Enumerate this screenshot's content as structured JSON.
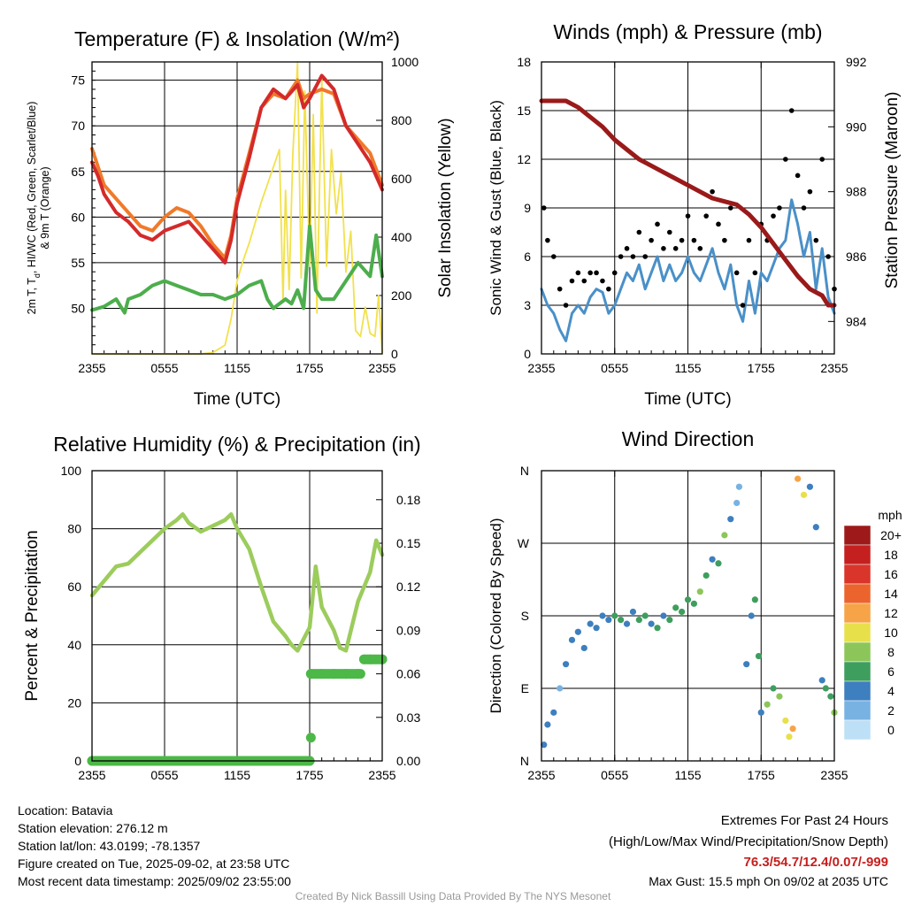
{
  "colors": {
    "temp": "#d42a2a",
    "hiwc": "#d42a2a",
    "t9m": "#f07a2a",
    "dew": "#4cae4c",
    "insol": "#f2e14c",
    "wind": "#4a90c8",
    "gust": "#000000",
    "pressure": "#9a1a1a",
    "rh": "#9ccc5c",
    "precip": "#4cb847",
    "extremes": "#c81e1e",
    "footer": "#999999"
  },
  "chart_data": [
    {
      "type": "line",
      "title": "Temperature (F) & Insolation (W/m²)",
      "xlabel": "Time (UTC)",
      "ylabel": "2m T, Td, HI/WC (Red, Green, Scarlet/Blue) & 9m T (Orange)",
      "ylabel_line1": "2m T, T",
      "ylabel_sub": "d",
      "ylabel_line1_rest": ", HI/WC (Red, Green, Scarlet/Blue)",
      "ylabel_line2": "& 9m T (Orange)",
      "y2label": "Solar Insolation (Yellow)",
      "x_ticks": [
        "2355",
        "0555",
        "1155",
        "1755",
        "2355"
      ],
      "xlim": [
        0,
        24
      ],
      "ylim": [
        45,
        77
      ],
      "y_ticks": [
        50,
        55,
        60,
        65,
        70,
        75
      ],
      "y2lim": [
        0,
        1000
      ],
      "y2_ticks": [
        0,
        200,
        400,
        600,
        800,
        1000
      ],
      "series": [
        {
          "name": "9m T",
          "axis": "y",
          "x": [
            0,
            0.5,
            1,
            2,
            3,
            4,
            5,
            6,
            7,
            8,
            9,
            10,
            11,
            11.5,
            12,
            13,
            14,
            15,
            16,
            17,
            17.5,
            18,
            19,
            20,
            21,
            22,
            23,
            24
          ],
          "values": [
            67.5,
            65.5,
            63.5,
            62,
            60.5,
            59,
            58.5,
            60,
            61,
            60.5,
            59,
            57,
            55.5,
            58,
            62,
            67,
            72,
            73.5,
            73,
            75,
            73,
            73.5,
            74,
            73.5,
            70,
            68.5,
            67,
            63.5
          ]
        },
        {
          "name": "2m T",
          "axis": "y",
          "x": [
            0,
            0.5,
            1,
            2,
            3,
            4,
            5,
            6,
            7,
            8,
            9,
            10,
            11,
            11.5,
            12,
            13,
            14,
            15,
            16,
            17,
            17.5,
            18,
            19,
            20,
            21,
            22,
            23,
            24
          ],
          "values": [
            66,
            64.5,
            62.5,
            60.5,
            59.5,
            58,
            57.5,
            58.5,
            59,
            59.5,
            58,
            56.5,
            55,
            57.5,
            61.5,
            66.5,
            72,
            74,
            73,
            74.5,
            72,
            73,
            75.5,
            74,
            70,
            68,
            66,
            63
          ]
        },
        {
          "name": "Td",
          "axis": "y",
          "x": [
            0,
            1,
            2,
            2.7,
            3,
            4,
            5,
            6,
            7,
            8,
            9,
            10,
            11,
            12,
            13,
            14,
            14.5,
            15,
            16,
            16.5,
            17,
            17.5,
            18,
            18.5,
            19,
            20,
            21,
            22,
            23,
            23.5,
            24
          ],
          "values": [
            49.8,
            50.2,
            51,
            49.5,
            51,
            51.5,
            52.5,
            53,
            52.5,
            52,
            51.5,
            51.5,
            51,
            51.5,
            52.5,
            53,
            51,
            50,
            51,
            50.5,
            52,
            50,
            59,
            52,
            51,
            51,
            53,
            55,
            53.5,
            58,
            53.5
          ]
        },
        {
          "name": "Insolation",
          "axis": "y2",
          "x": [
            0,
            8,
            9,
            10,
            11,
            11.5,
            12,
            12.5,
            13,
            13.5,
            14,
            14.5,
            15,
            15.5,
            15.8,
            16,
            16.3,
            16.6,
            17,
            17.3,
            17.6,
            18,
            18.3,
            18.6,
            19,
            19.4,
            19.8,
            20.2,
            20.6,
            21,
            21.4,
            21.8,
            22.2,
            22.6,
            23,
            23.4,
            23.7,
            24
          ],
          "values": [
            0,
            0,
            0,
            5,
            30,
            120,
            250,
            320,
            380,
            450,
            520,
            580,
            640,
            700,
            180,
            560,
            220,
            680,
            1000,
            260,
            900,
            300,
            820,
            140,
            940,
            300,
            700,
            480,
            620,
            280,
            420,
            80,
            60,
            160,
            70,
            60,
            200,
            5
          ]
        }
      ]
    },
    {
      "type": "line",
      "title": "Winds (mph) & Pressure (mb)",
      "xlabel": "Time (UTC)",
      "ylabel": "Sonic Wind & Gust (Blue, Black)",
      "y2label": "Station Pressure (Maroon)",
      "x_ticks": [
        "2355",
        "0555",
        "1155",
        "1755",
        "2355"
      ],
      "xlim": [
        0,
        24
      ],
      "ylim": [
        0,
        18
      ],
      "y_ticks": [
        0,
        3,
        6,
        9,
        12,
        15,
        18
      ],
      "y2lim": [
        983.0,
        992.0
      ],
      "y2_ticks": [
        984,
        986,
        988,
        990,
        992
      ],
      "series": [
        {
          "name": "Sonic Wind",
          "axis": "y",
          "style": "line",
          "x": [
            0,
            0.5,
            1,
            1.5,
            2,
            2.5,
            3,
            3.5,
            4,
            4.5,
            5,
            5.5,
            6,
            6.5,
            7,
            7.5,
            8,
            8.5,
            9,
            9.5,
            10,
            10.5,
            11,
            11.5,
            12,
            12.5,
            13,
            13.5,
            14,
            14.5,
            15,
            15.5,
            16,
            16.5,
            17,
            17.5,
            18,
            18.5,
            19,
            19.5,
            20,
            20.5,
            21,
            21.5,
            22,
            22.5,
            23,
            23.5,
            24
          ],
          "values": [
            4,
            3,
            2.5,
            1.5,
            0.8,
            2.5,
            3,
            2.5,
            3.5,
            4,
            3.8,
            2.5,
            3,
            4,
            5,
            4.5,
            5.5,
            4,
            5,
            6,
            4.5,
            5.5,
            4.5,
            5,
            6,
            5,
            4.5,
            5.5,
            6.5,
            5,
            4,
            5.5,
            3,
            2,
            4.5,
            2.5,
            5,
            4.5,
            5.5,
            6.5,
            7,
            9.5,
            8,
            6,
            7.5,
            4,
            6.5,
            3.5,
            2.5
          ]
        },
        {
          "name": "Gust",
          "axis": "y",
          "style": "points",
          "x": [
            0.2,
            0.5,
            1,
            1.5,
            2,
            2.5,
            3,
            3.5,
            4,
            4.5,
            5,
            5.5,
            6,
            6.5,
            7,
            7.5,
            8,
            8.5,
            9,
            9.5,
            10,
            10.5,
            11,
            11.5,
            12,
            12.5,
            13,
            13.5,
            14,
            14.5,
            15,
            15.5,
            16,
            16.5,
            17,
            17.5,
            18,
            18.5,
            19,
            19.5,
            20,
            20.5,
            21,
            21.5,
            22,
            22.5,
            23,
            23.5,
            24
          ],
          "values": [
            9,
            7,
            6,
            4,
            3,
            4.5,
            5,
            4.5,
            5,
            5,
            4.5,
            4,
            5,
            6,
            6.5,
            6,
            7.5,
            6,
            7,
            8,
            6.5,
            7.5,
            6.5,
            7,
            8.5,
            7,
            6.5,
            8.5,
            10,
            8,
            7,
            9,
            5,
            3,
            7,
            5,
            8,
            7,
            8.5,
            9,
            12,
            15,
            11,
            9,
            10,
            7,
            12,
            6,
            4
          ]
        },
        {
          "name": "Pressure",
          "axis": "y2",
          "style": "line",
          "x": [
            0,
            1,
            2,
            3,
            4,
            5,
            6,
            7,
            8,
            9,
            10,
            11,
            12,
            13,
            14,
            15,
            16,
            17,
            18,
            19,
            20,
            21,
            22,
            23,
            23.5,
            24
          ],
          "values": [
            990.8,
            990.8,
            990.8,
            990.6,
            990.3,
            990.0,
            989.6,
            989.3,
            989.0,
            988.8,
            988.6,
            988.4,
            988.2,
            988.0,
            987.8,
            987.7,
            987.6,
            987.3,
            986.9,
            986.4,
            985.9,
            985.4,
            985.0,
            984.8,
            984.5,
            984.5
          ]
        }
      ]
    },
    {
      "type": "line",
      "title": "Relative Humidity (%) & Precipitation (in)",
      "xlabel": "",
      "ylabel": "Percent & Precipitation",
      "x_ticks": [
        "2355",
        "0555",
        "1155",
        "1755",
        "2355"
      ],
      "xlim": [
        0,
        24
      ],
      "ylim": [
        0,
        100
      ],
      "y_ticks": [
        0,
        20,
        40,
        60,
        80,
        100
      ],
      "y2lim": [
        0,
        0.2
      ],
      "y2_ticks": [
        0.0,
        0.03,
        0.06,
        0.09,
        0.12,
        0.15,
        0.18
      ],
      "series": [
        {
          "name": "RH",
          "axis": "y",
          "x": [
            0,
            1,
            2,
            3,
            4,
            5,
            6,
            7,
            7.5,
            8,
            9,
            10,
            11,
            11.5,
            12,
            13,
            14,
            15,
            16,
            16.5,
            17,
            17.5,
            18,
            18.5,
            19,
            20,
            20.5,
            21,
            22,
            23,
            23.5,
            24
          ],
          "values": [
            57,
            62,
            67,
            68,
            72,
            76,
            80,
            83,
            85,
            82,
            79,
            81,
            83,
            85,
            80,
            73,
            60,
            48,
            43,
            40,
            38,
            42,
            46,
            67,
            53,
            45,
            39,
            38,
            55,
            65,
            76,
            71
          ]
        },
        {
          "name": "Precipitation",
          "axis": "y2",
          "x": [
            0,
            2,
            4,
            6,
            8,
            10,
            12,
            14,
            16,
            18,
            18.1,
            19,
            20,
            21,
            22,
            22.5,
            23,
            24
          ],
          "values": [
            0,
            0,
            0,
            0,
            0,
            0,
            0,
            0,
            0,
            0,
            0.06,
            0.06,
            0.06,
            0.06,
            0.06,
            0.07,
            0.07,
            0.07
          ]
        }
      ]
    },
    {
      "type": "scatter",
      "title": "Wind Direction",
      "ylabel": "Direction (Colored By Speed)",
      "x_ticks": [
        "2355",
        "0555",
        "1155",
        "1755",
        "2355"
      ],
      "xlim": [
        0,
        24
      ],
      "y_categories": [
        "N",
        "E",
        "S",
        "W",
        "N"
      ],
      "ylim": [
        0,
        360
      ],
      "colorbar": {
        "unit": "mph",
        "labels": [
          "20+",
          "18",
          "16",
          "14",
          "12",
          "10",
          "8",
          "6",
          "4",
          "2",
          "0"
        ],
        "colors": [
          "#9e1a1a",
          "#c42020",
          "#d9352a",
          "#ec642d",
          "#f6a447",
          "#e8e04a",
          "#8cc65a",
          "#3e9e5e",
          "#3d7fbf",
          "#78b2e3",
          "#bde0f7"
        ]
      },
      "points": {
        "x": [
          0.2,
          0.5,
          1,
          1.5,
          2,
          2.5,
          3,
          3.5,
          4,
          4.5,
          5,
          5.5,
          6,
          6.5,
          7,
          7.5,
          8,
          8.5,
          9,
          9.5,
          10,
          10.5,
          11,
          11.5,
          12,
          12.5,
          13,
          13.5,
          14,
          14.5,
          15,
          15.5,
          16,
          16.2,
          16.8,
          17.2,
          17.5,
          17.8,
          18,
          18.5,
          19,
          19.5,
          20,
          20.3,
          20.6,
          21,
          21.5,
          22,
          22.5,
          23,
          23.3,
          23.7,
          24
        ],
        "y": [
          20,
          45,
          60,
          90,
          120,
          150,
          160,
          140,
          170,
          165,
          180,
          175,
          180,
          175,
          170,
          185,
          175,
          180,
          170,
          165,
          180,
          175,
          190,
          185,
          200,
          195,
          210,
          230,
          250,
          245,
          280,
          300,
          320,
          340,
          120,
          180,
          200,
          130,
          60,
          70,
          90,
          80,
          50,
          30,
          40,
          350,
          330,
          340,
          290,
          100,
          90,
          80,
          60
        ],
        "speed": [
          3,
          4,
          3,
          2,
          3,
          4,
          3,
          3,
          4,
          3,
          4,
          4,
          5,
          6,
          4,
          4,
          5,
          6,
          4,
          5,
          4,
          5,
          6,
          5,
          5,
          6,
          7,
          5,
          4,
          6,
          7,
          4,
          2,
          1,
          3,
          4,
          5,
          6,
          4,
          7,
          6,
          8,
          9,
          10,
          12,
          11,
          10,
          4,
          3,
          4,
          5,
          6,
          7
        ]
      }
    }
  ],
  "footer_left": [
    "Location: Batavia",
    "Station elevation: 276.12 m",
    "Station lat/lon: 43.0199; -78.1357",
    "Figure created on Tue, 2025-09-02, at 23:58 UTC",
    "Most recent data timestamp: 2025/09/02 23:55:00"
  ],
  "footer_right": {
    "title": "Extremes For Past 24 Hours",
    "subtitle": "(High/Low/Max Wind/Precipitation/Snow Depth)",
    "values": "76.3/54.7/12.4/0.07/-999",
    "max_gust": "Max Gust: 15.5 mph On 09/02 at 2035 UTC"
  },
  "credit": "Created By Nick Bassill Using Data Provided By The NYS Mesonet"
}
